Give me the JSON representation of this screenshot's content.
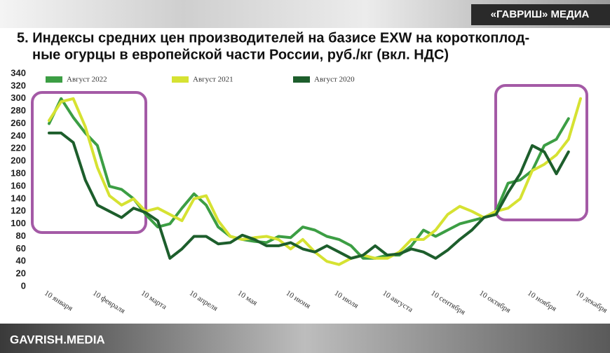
{
  "header": {
    "brand": "«ГАВРИШ» МЕДИА"
  },
  "footer": {
    "text": "GAVRISH.MEDIA"
  },
  "chart_data": {
    "type": "line",
    "title": [
      "5. Индексы средних цен производителей на базисе EXW на короткоплод-",
      "ные огурцы в европейской части России, руб./кг (вкл. НДС)"
    ],
    "categories": [
      "10 января",
      null,
      null,
      null,
      "10 февраля",
      null,
      null,
      null,
      "10 марта",
      null,
      null,
      null,
      "10 апреля",
      null,
      null,
      null,
      "10 мая",
      null,
      null,
      null,
      "10 июня",
      null,
      null,
      null,
      "10 июля",
      null,
      null,
      null,
      "10 августа",
      null,
      null,
      null,
      "10 сентября",
      null,
      null,
      null,
      "10 октября",
      null,
      null,
      null,
      "10 ноября",
      null,
      null,
      null,
      "10 декабря"
    ],
    "ylim": [
      0,
      340
    ],
    "yticks": [
      0,
      20,
      40,
      60,
      80,
      100,
      120,
      140,
      160,
      180,
      200,
      220,
      240,
      260,
      280,
      300,
      320,
      340
    ],
    "grid": false,
    "series": [
      {
        "name": "Август 2022",
        "color": "#3c9e44",
        "values": [
          260,
          300,
          270,
          245,
          225,
          160,
          155,
          140,
          115,
          95,
          100,
          125,
          148,
          130,
          95,
          80,
          75,
          72,
          70,
          80,
          78,
          95,
          90,
          80,
          75,
          65,
          45,
          45,
          50,
          50,
          65,
          90,
          80,
          90,
          100,
          105,
          110,
          120,
          165,
          170,
          185,
          225,
          235,
          268,
          null
        ]
      },
      {
        "name": "Август 2021",
        "color": "#d6e232",
        "values": [
          265,
          295,
          300,
          255,
          190,
          145,
          130,
          140,
          120,
          125,
          115,
          105,
          140,
          145,
          105,
          80,
          75,
          78,
          80,
          75,
          60,
          75,
          55,
          40,
          35,
          45,
          50,
          45,
          45,
          55,
          75,
          75,
          90,
          115,
          128,
          120,
          110,
          120,
          125,
          140,
          185,
          195,
          210,
          235,
          300
        ]
      },
      {
        "name": "Август 2020",
        "color": "#1d5e2c",
        "values": [
          245,
          245,
          230,
          170,
          130,
          120,
          110,
          125,
          118,
          105,
          45,
          60,
          80,
          80,
          68,
          70,
          82,
          75,
          65,
          65,
          70,
          60,
          55,
          65,
          55,
          45,
          50,
          65,
          50,
          52,
          60,
          55,
          45,
          58,
          75,
          90,
          110,
          115,
          150,
          180,
          225,
          215,
          180,
          215,
          null
        ]
      }
    ]
  }
}
